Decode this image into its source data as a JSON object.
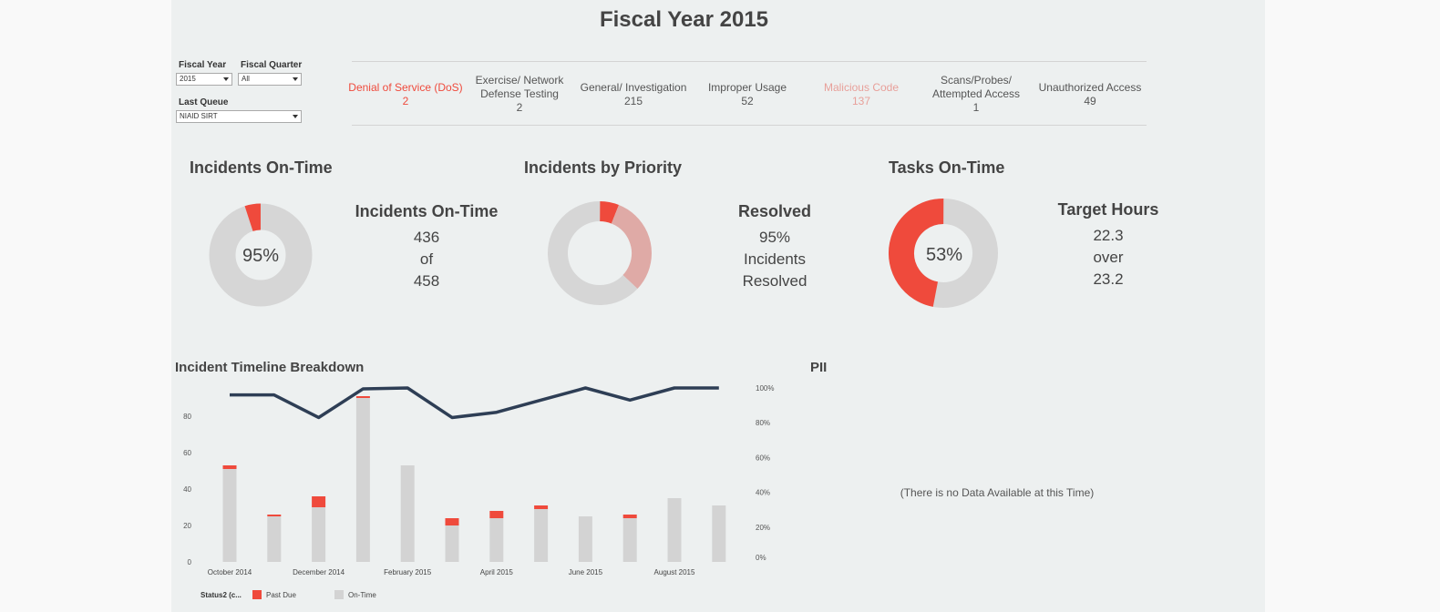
{
  "header": {
    "title": "Fiscal Year 2015"
  },
  "filters": {
    "fiscal_year": {
      "label": "Fiscal Year",
      "value": "2015"
    },
    "fiscal_quarter": {
      "label": "Fiscal Quarter",
      "value": "All"
    },
    "last_queue": {
      "label": "Last Queue",
      "value": "NIAID SIRT"
    }
  },
  "categories": [
    {
      "name": "Denial of Service (DoS)",
      "name_lines": [
        "Denial of Service (DoS)"
      ],
      "count": "2",
      "color": "#ef4a3c"
    },
    {
      "name": "Exercise/ Network Defense Testing",
      "name_lines": [
        "Exercise/ Network",
        "Defense Testing"
      ],
      "count": "2",
      "color": "#555555"
    },
    {
      "name": "General/ Investigation",
      "name_lines": [
        "General/ Investigation"
      ],
      "count": "215",
      "color": "#555555"
    },
    {
      "name": "Improper Usage",
      "name_lines": [
        "Improper Usage"
      ],
      "count": "52",
      "color": "#555555"
    },
    {
      "name": "Malicious Code",
      "name_lines": [
        "Malicious Code"
      ],
      "count": "137",
      "color": "#e8a09a"
    },
    {
      "name": "Scans/Probes/ Attempted Access",
      "name_lines": [
        "Scans/Probes/",
        "Attempted Access"
      ],
      "count": "1",
      "color": "#555555"
    },
    {
      "name": "Unauthorized Access",
      "name_lines": [
        "Unauthorized Access"
      ],
      "count": "49",
      "color": "#555555"
    }
  ],
  "incidents_ontime": {
    "section_title": "Incidents On-Time",
    "donut_label": "95%",
    "percent": 95,
    "kpi_title": "Incidents On-Time",
    "kpi_lines": [
      "436",
      "of",
      "458"
    ]
  },
  "incidents_priority": {
    "section_title": "Incidents by Priority",
    "segments": [
      {
        "value": 6,
        "color": "#ef4a3c"
      },
      {
        "value": 31,
        "color": "#dfaaa6"
      },
      {
        "value": 63,
        "color": "#d6d6d6"
      }
    ],
    "kpi_title": "Resolved",
    "kpi_lines": [
      "95%",
      "Incidents",
      "Resolved"
    ]
  },
  "tasks_ontime": {
    "section_title": "Tasks On-Time",
    "donut_label": "53%",
    "percent": 53,
    "kpi_title": "Target Hours",
    "kpi_lines": [
      "22.3",
      "over",
      "23.2"
    ]
  },
  "colors": {
    "past_due": "#ef4a3c",
    "on_time": "#d3d3d3",
    "line": "#2e3e55"
  },
  "chart_data": {
    "type": "bar",
    "title": "Incident Timeline Breakdown",
    "categories": [
      "October 2014",
      "November 2014",
      "December 2014",
      "January 2015",
      "February 2015",
      "March 2015",
      "April 2015",
      "May 2015",
      "June 2015",
      "July 2015",
      "August 2015",
      "September 2015"
    ],
    "x_tick_labels": [
      "October 2014",
      "December 2014",
      "February 2015",
      "April 2015",
      "June 2015",
      "August 2015"
    ],
    "series": [
      {
        "name": "On-Time",
        "values": [
          51,
          25,
          30,
          90,
          53,
          20,
          24,
          29,
          25,
          24,
          35,
          31
        ]
      },
      {
        "name": "Past Due",
        "values": [
          2,
          1,
          6,
          1,
          0,
          4,
          4,
          2,
          0,
          2,
          0,
          0
        ]
      }
    ],
    "line_series": {
      "values": [
        96,
        96,
        83,
        99.5,
        100,
        83,
        86,
        93,
        100,
        93,
        100,
        100
      ]
    },
    "ylim_left": [
      0,
      95
    ],
    "yticks_left": [
      "0",
      "20",
      "40",
      "60",
      "80"
    ],
    "ylim_right": [
      0,
      100
    ],
    "yticks_right": [
      "0%",
      "20%",
      "40%",
      "60%",
      "80%",
      "100%"
    ],
    "legend": {
      "title": "Status2 (c...",
      "items": [
        "Past Due",
        "On-Time"
      ]
    }
  },
  "pii": {
    "title": "PII",
    "message": "(There is no Data Available at this Time)"
  }
}
